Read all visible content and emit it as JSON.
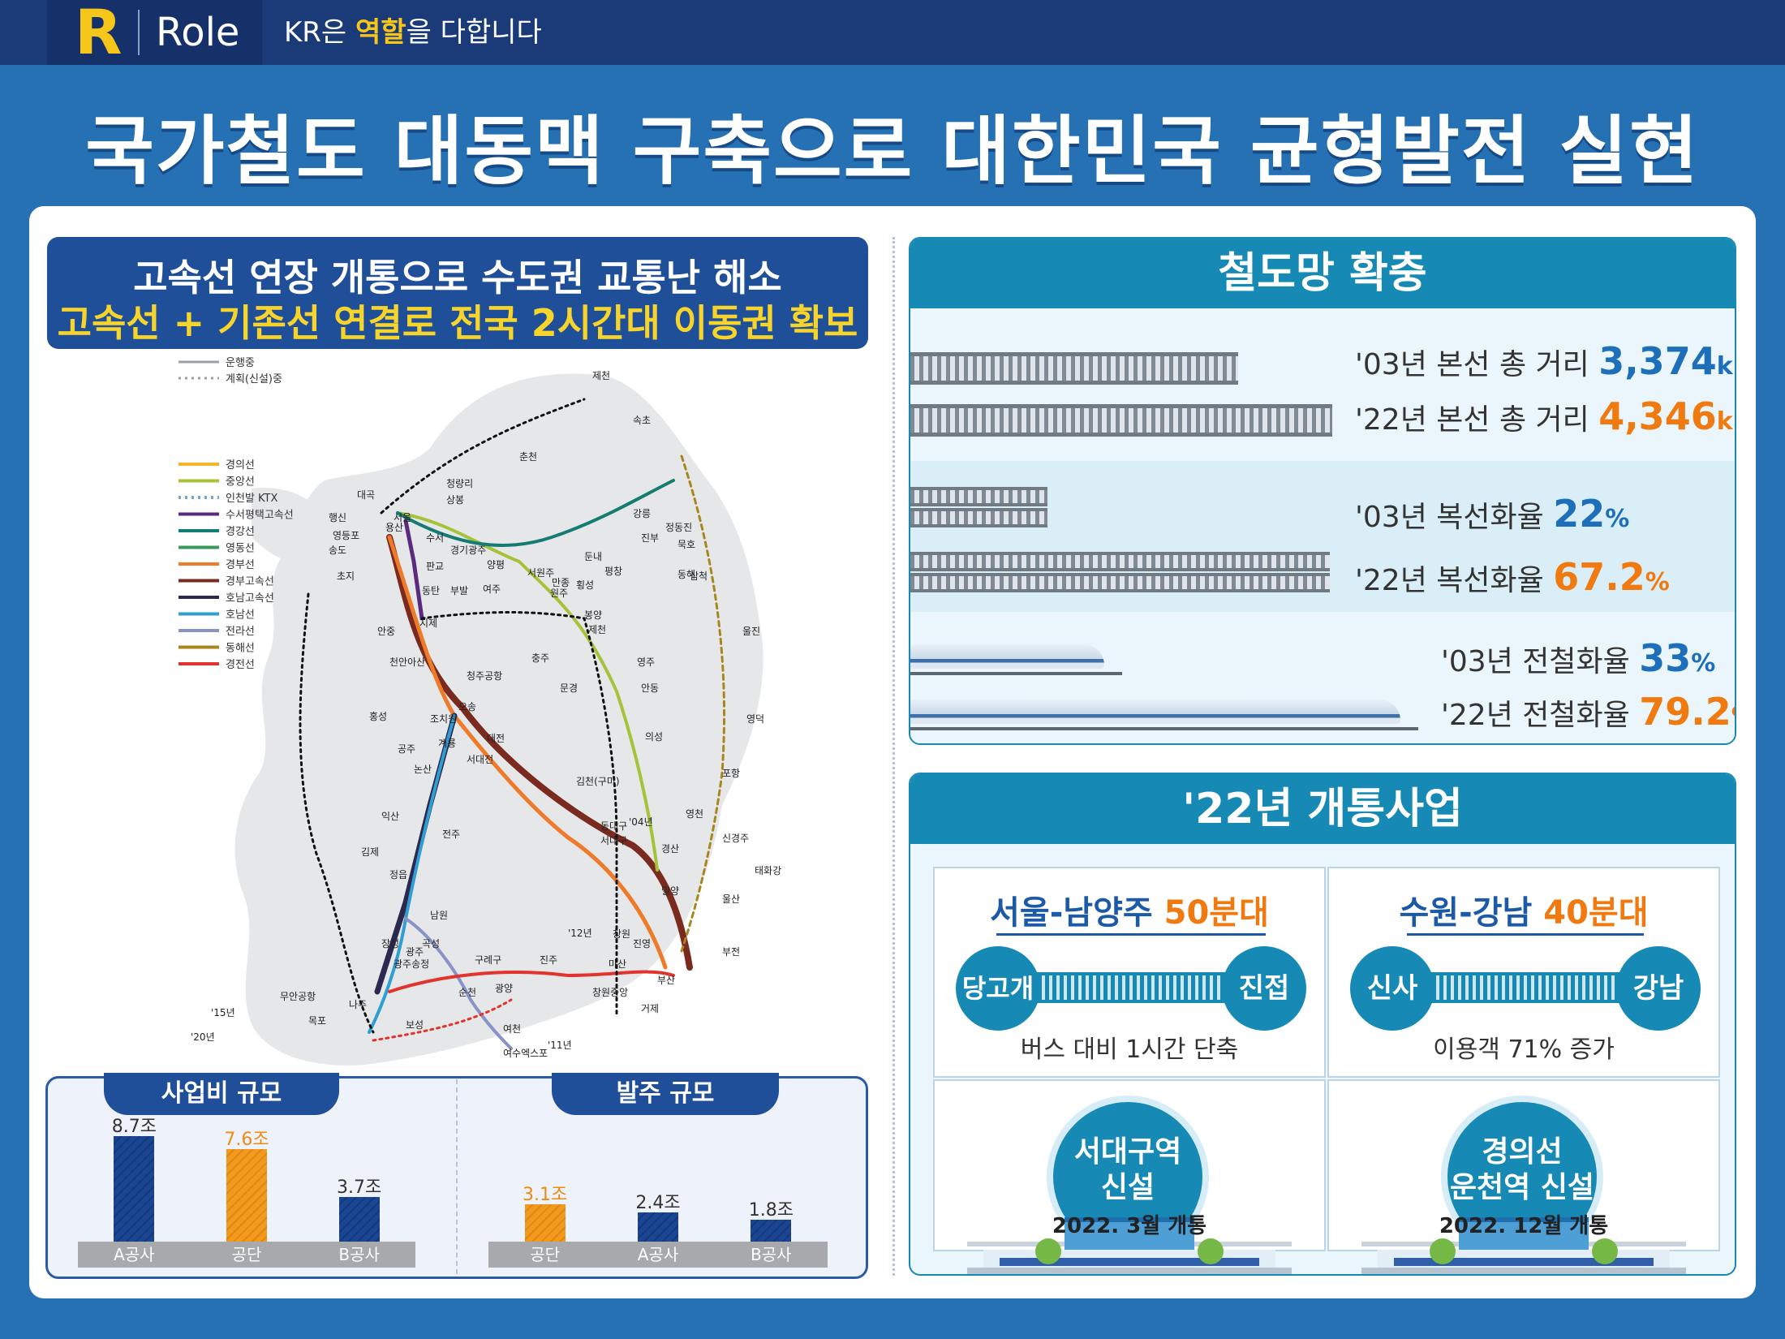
{
  "header": {
    "logo_letter": "R",
    "logo_word": "Role",
    "tagline_prefix": "KR은 ",
    "tagline_highlight": "역할",
    "tagline_suffix": "을 다합니다"
  },
  "main_title": "국가철도 대동맥 구축으로 대한민국 균형발전 실현",
  "left": {
    "headline_1": "고속선 연장 개통으로 수도권 교통난 해소",
    "headline_2": "고속선 + 기존선 연결로 전국 2시간대 이동권 확보",
    "map_legend_status": [
      "운행중",
      "계획(신설)중"
    ],
    "map_legend_lines": [
      {
        "name": "경의선",
        "color": "#f5b52a"
      },
      {
        "name": "중앙선",
        "color": "#a4c33a"
      },
      {
        "name": "인천발 KTX",
        "color": "#7aa6c6"
      },
      {
        "name": "수서평택고속선",
        "color": "#5b2a7e"
      },
      {
        "name": "경강선",
        "color": "#157c74"
      },
      {
        "name": "영동선",
        "color": "#3a9a5c"
      },
      {
        "name": "경부선",
        "color": "#ee7a2a"
      },
      {
        "name": "경부고속선",
        "color": "#7a2a1e"
      },
      {
        "name": "호남고속선",
        "color": "#2b2a4e"
      },
      {
        "name": "호남선",
        "color": "#2f9ed3"
      },
      {
        "name": "전라선",
        "color": "#8a93c8"
      },
      {
        "name": "동해선",
        "color": "#a8861e"
      },
      {
        "name": "경전선",
        "color": "#e2342c"
      }
    ],
    "map_labels": [
      "제천",
      "속초",
      "춘천",
      "청량리",
      "상봉",
      "대곡",
      "서울",
      "행신",
      "용산",
      "강릉",
      "정동진",
      "영등포",
      "송도",
      "수서",
      "경기광주",
      "양평",
      "서원주",
      "둔내",
      "평창",
      "진부",
      "묵호",
      "동해",
      "삼척",
      "초지",
      "판교",
      "부발",
      "여주",
      "만종",
      "원주",
      "횡성",
      "동탄",
      "지제",
      "봉양",
      "제천",
      "울진",
      "안중",
      "천안아산",
      "청주공항",
      "충주",
      "영주",
      "홍성",
      "조치원",
      "오송",
      "문경",
      "안동",
      "공주",
      "계룡",
      "대전",
      "서대전",
      "논산",
      "김천(구미)",
      "의성",
      "영덕",
      "익산",
      "전주",
      "동대구",
      "서대구",
      "영천",
      "포항",
      "김제",
      "경산",
      "신경주",
      "태화강",
      "정읍",
      "남원",
      "밀양",
      "울산",
      "장성",
      "곡성",
      "창원",
      "진영",
      "광주",
      "광주송정",
      "구례구",
      "진주",
      "마산",
      "부전",
      "무안공항",
      "나주",
      "광양",
      "순천",
      "창원중앙",
      "부산",
      "목포",
      "보성",
      "여천",
      "거제",
      "여수엑스포",
      "'20년",
      "'15년",
      "'04년",
      "'12년",
      "'11년"
    ],
    "charts": [
      {
        "title": "사업비 규모",
        "categories": [
          "A공사",
          "공단",
          "B공사"
        ],
        "values": [
          8.7,
          7.6,
          3.7
        ],
        "labels": [
          "8.7조",
          "7.6조",
          "3.7조"
        ],
        "highlight": [
          false,
          true,
          false
        ]
      },
      {
        "title": "발주 규모",
        "categories": [
          "공단",
          "A공사",
          "B공사"
        ],
        "values": [
          3.1,
          2.4,
          1.8
        ],
        "labels": [
          "3.1조",
          "2.4조",
          "1.8조"
        ],
        "highlight": [
          true,
          false,
          false
        ]
      }
    ]
  },
  "network": {
    "title": "철도망 확충",
    "rows": [
      {
        "label": "'03년 본선 총 거리 ",
        "value": "3,374",
        "unit": "km",
        "accent": "blue",
        "fraction": 0.777
      },
      {
        "label": "'22년 본선 총 거리 ",
        "value": "4,346",
        "unit": "km",
        "accent": "orange",
        "fraction": 1.0
      },
      {
        "label": "'03년 복선화율 ",
        "value": "22",
        "unit": "%",
        "accent": "blue",
        "fraction": 0.22
      },
      {
        "label": "'22년 복선화율 ",
        "value": "67.2",
        "unit": "%",
        "accent": "orange",
        "fraction": 0.672
      },
      {
        "label": "'03년 전철화율 ",
        "value": "33",
        "unit": "%",
        "accent": "blue",
        "fraction": 0.33
      },
      {
        "label": "'22년 전철화율 ",
        "value": "79.2",
        "unit": "%",
        "accent": "orange",
        "fraction": 0.792
      }
    ]
  },
  "openings": {
    "title": "'22년 개통사업",
    "routes": [
      {
        "title_a": "서울-남양주 ",
        "title_b": "50분대",
        "from": "당고개",
        "to": "진접",
        "note": "버스 대비 1시간 단축"
      },
      {
        "title_a": "수원-강남 ",
        "title_b": "40분대",
        "from": "신사",
        "to": "강남",
        "note": "이용객 71% 증가"
      }
    ],
    "stations": [
      {
        "line1": "서대구역",
        "line2": "신설",
        "date": "2022. 3월 개통"
      },
      {
        "line1": "경의선",
        "line2": "운천역 신설",
        "date": "2022. 12월 개통"
      }
    ]
  },
  "colors": {
    "page_bg": "#2571b3",
    "topbar": "#1b3a78",
    "accent_yellow": "#f7c61b",
    "panel_blue": "#1689b5",
    "highlight_orange": "#f07a10",
    "stat_blue": "#1c6fb8"
  }
}
